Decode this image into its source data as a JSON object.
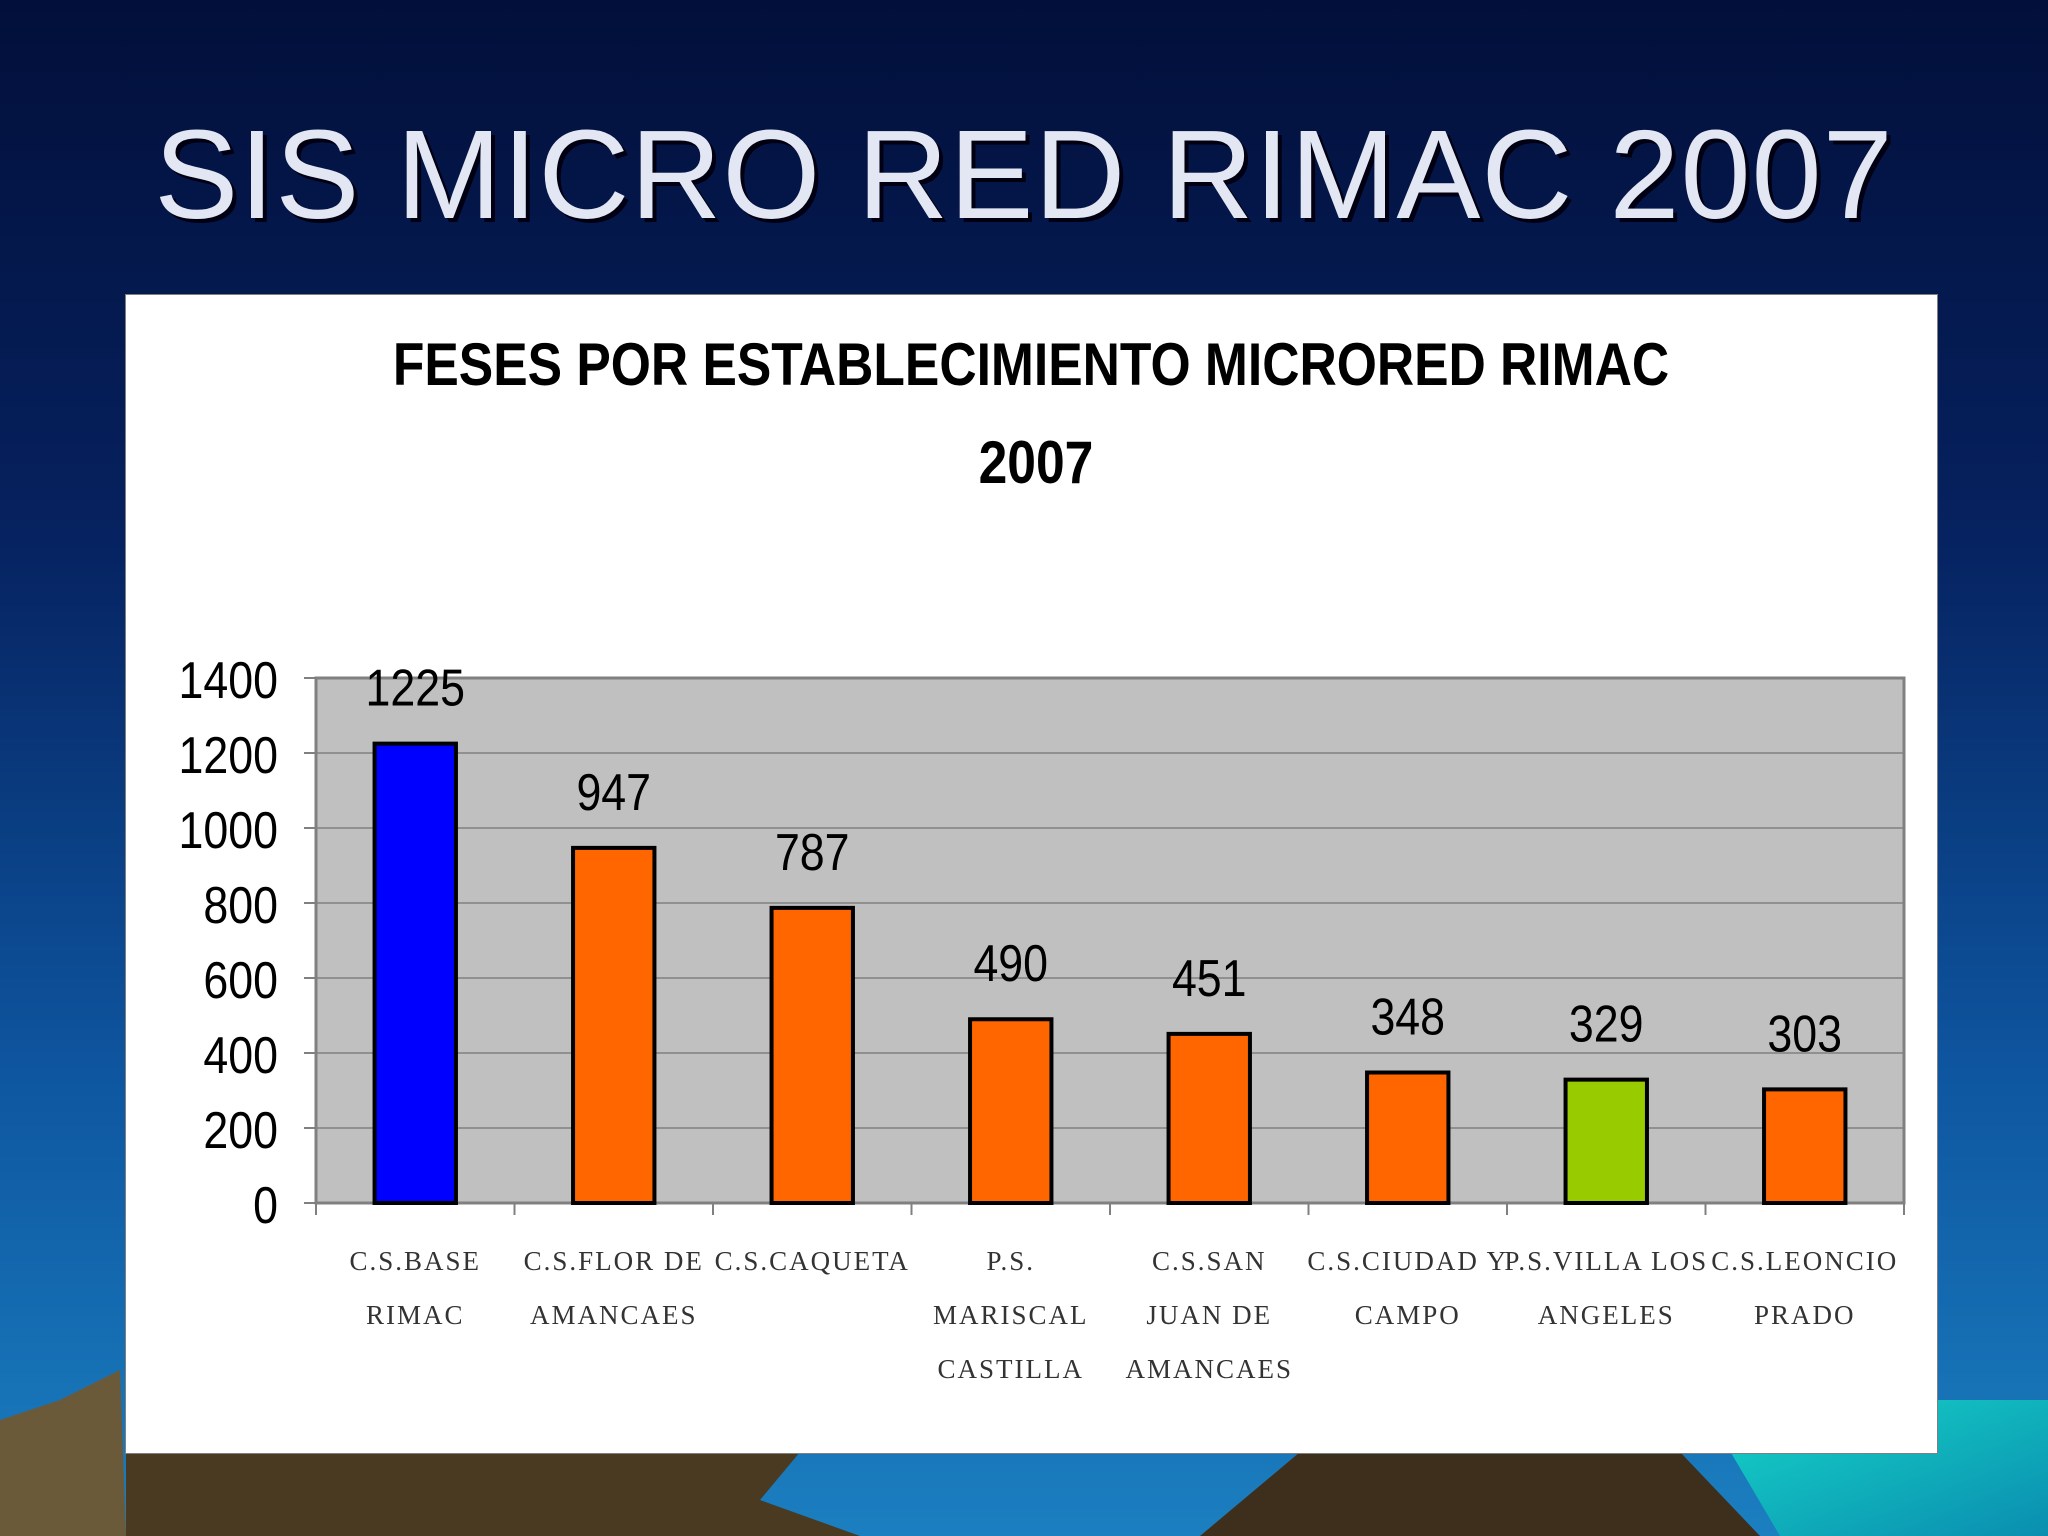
{
  "slide": {
    "title": "SIS MICRO RED RIMAC 2007"
  },
  "colors": {
    "highlight_max": "#0000ff",
    "default_bar": "#ff6600",
    "highlight_green": "#99cc00",
    "plot_area": "#c0c0c0",
    "title_text": "#e3e6f3"
  },
  "chart_data": {
    "type": "bar",
    "title_lines": [
      "FESES POR ESTABLECIMIENTO MICRORED RIMAC",
      "2007"
    ],
    "xlabel": "",
    "ylabel": "",
    "ylim": [
      0,
      1400
    ],
    "yticks": [
      0,
      200,
      400,
      600,
      800,
      1000,
      1200,
      1400
    ],
    "grid": true,
    "legend": "none",
    "categories": [
      [
        "C.S.BASE",
        "RIMAC"
      ],
      [
        "C.S.FLOR DE",
        "AMANCAES"
      ],
      [
        "C.S.CAQUETA"
      ],
      [
        "P.S.",
        "MARISCAL",
        "CASTILLA"
      ],
      [
        "C.S.SAN",
        "JUAN DE",
        "AMANCAES"
      ],
      [
        "C.S.CIUDAD Y",
        "CAMPO"
      ],
      [
        "P.S.VILLA LOS",
        "ANGELES"
      ],
      [
        "C.S.LEONCIO",
        "PRADO"
      ]
    ],
    "values": [
      1225,
      947,
      787,
      490,
      451,
      348,
      329,
      303
    ],
    "bar_colors": [
      "#0000ff",
      "#ff6600",
      "#ff6600",
      "#ff6600",
      "#ff6600",
      "#ff6600",
      "#99cc00",
      "#ff6600"
    ]
  }
}
